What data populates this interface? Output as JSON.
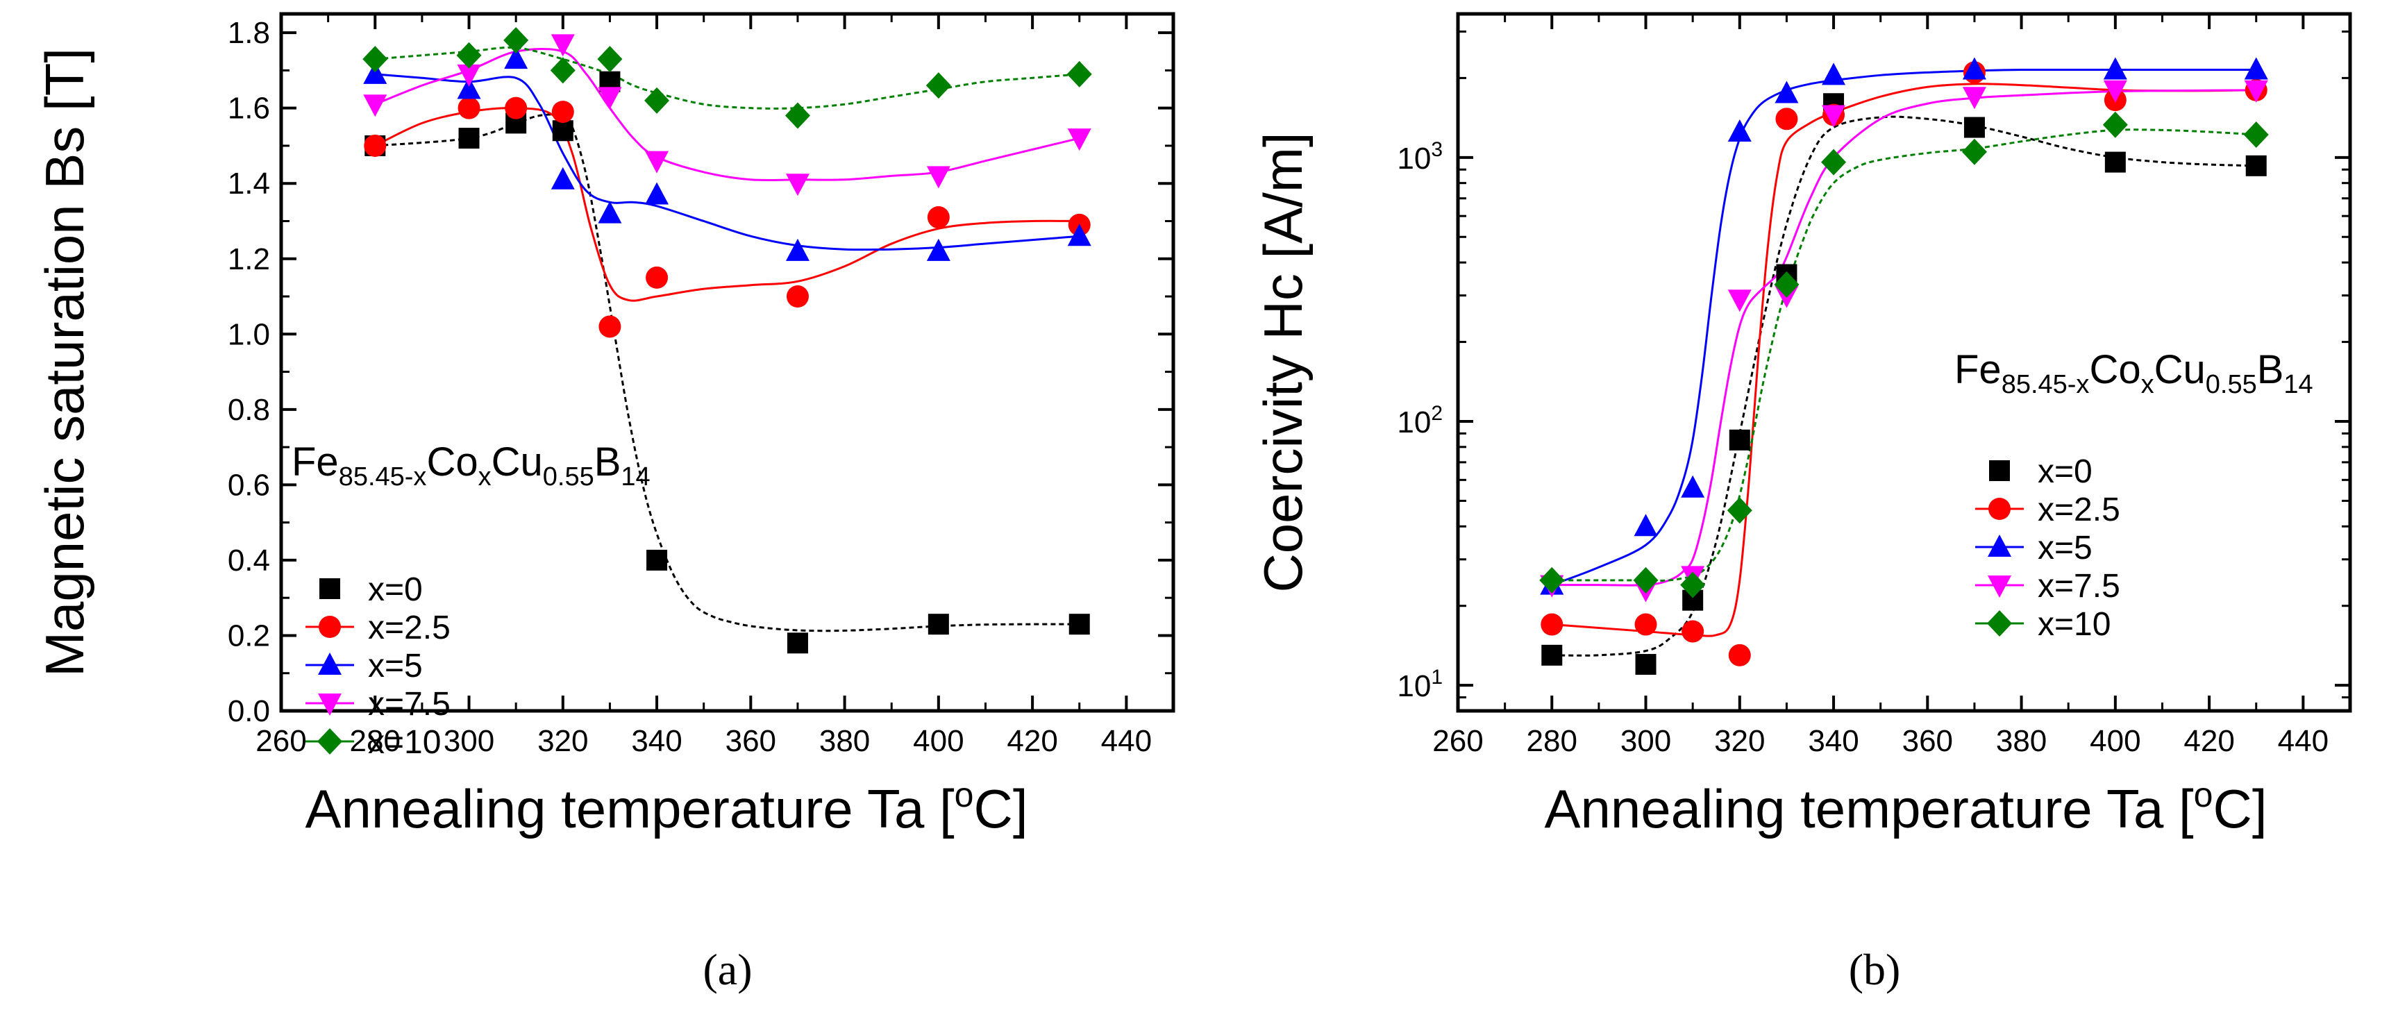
{
  "chart_data": [
    {
      "type": "scatter",
      "panel_label": "(a)",
      "title": "",
      "xlabel": "Annealing temperature Ta [",
      "xlabel_sup": "o",
      "xlabel_end": "C]",
      "ylabel": "Magnetic saturation Bs [T]",
      "xlim": [
        260,
        450
      ],
      "ylim": [
        0.0,
        1.85
      ],
      "yscale": "linear",
      "grid": false,
      "legend_position": "left",
      "xticks": [
        "260",
        "280",
        "300",
        "320",
        "340",
        "360",
        "380",
        "400",
        "420",
        "440"
      ],
      "yticks": [
        "0.0",
        "0.2",
        "0.4",
        "0.6",
        "0.8",
        "1.0",
        "1.2",
        "1.4",
        "1.6",
        "1.8"
      ],
      "annotation": {
        "base": "Fe",
        "sub1": "85.45-x",
        "mid1": "Co",
        "sub2": "x",
        "mid2": "Cu",
        "sub3": "0.55",
        "mid3": "B",
        "sub4": "14"
      },
      "series": [
        {
          "name": "x=0",
          "color": "#000000",
          "marker": "square",
          "x": [
            280,
            300,
            310,
            320,
            330,
            340,
            370,
            400,
            430
          ],
          "y": [
            1.5,
            1.52,
            1.56,
            1.54,
            1.67,
            0.4,
            0.18,
            0.23,
            0.23
          ],
          "fit_x": [
            280,
            300,
            310,
            315,
            320,
            322,
            325,
            328,
            331,
            334,
            337,
            340,
            344,
            348,
            352,
            356,
            360,
            366,
            372,
            380,
            390,
            400,
            410,
            420,
            430
          ],
          "fit_y": [
            1.5,
            1.52,
            1.56,
            1.58,
            1.58,
            1.55,
            1.42,
            1.22,
            1.0,
            0.78,
            0.6,
            0.47,
            0.35,
            0.28,
            0.25,
            0.235,
            0.225,
            0.217,
            0.213,
            0.213,
            0.218,
            0.225,
            0.229,
            0.23,
            0.23
          ]
        },
        {
          "name": "x=2.5",
          "color": "#ff0000",
          "marker": "circle",
          "x": [
            280,
            300,
            310,
            320,
            330,
            340,
            370,
            400,
            430
          ],
          "y": [
            1.5,
            1.6,
            1.6,
            1.59,
            1.02,
            1.15,
            1.1,
            1.31,
            1.29
          ],
          "fit_x": [
            280,
            290,
            300,
            310,
            318,
            322,
            326,
            330,
            334,
            340,
            350,
            360,
            370,
            380,
            390,
            400,
            410,
            420,
            430
          ],
          "fit_y": [
            1.5,
            1.56,
            1.59,
            1.6,
            1.58,
            1.48,
            1.28,
            1.13,
            1.09,
            1.1,
            1.12,
            1.13,
            1.14,
            1.18,
            1.24,
            1.28,
            1.295,
            1.3,
            1.3
          ]
        },
        {
          "name": "x=5",
          "color": "#0000ff",
          "marker": "triangle-up",
          "x": [
            280,
            300,
            310,
            320,
            330,
            340,
            370,
            400,
            430
          ],
          "y": [
            1.69,
            1.65,
            1.73,
            1.41,
            1.32,
            1.37,
            1.22,
            1.22,
            1.26
          ],
          "fit_x": [
            280,
            290,
            300,
            310,
            315,
            320,
            325,
            330,
            335,
            340,
            350,
            360,
            370,
            380,
            390,
            400,
            410,
            420,
            430
          ],
          "fit_y": [
            1.69,
            1.68,
            1.67,
            1.68,
            1.61,
            1.48,
            1.38,
            1.35,
            1.35,
            1.34,
            1.3,
            1.26,
            1.235,
            1.225,
            1.225,
            1.23,
            1.24,
            1.25,
            1.26
          ]
        },
        {
          "name": "x=7.5",
          "color": "#ff00ff",
          "marker": "triangle-down",
          "x": [
            280,
            300,
            320,
            330,
            340,
            370,
            400,
            430
          ],
          "y": [
            1.61,
            1.69,
            1.77,
            1.63,
            1.46,
            1.4,
            1.42,
            1.52
          ],
          "fit_x": [
            280,
            290,
            300,
            310,
            320,
            325,
            330,
            335,
            340,
            350,
            360,
            370,
            380,
            390,
            400,
            410,
            420,
            430
          ],
          "fit_y": [
            1.61,
            1.66,
            1.7,
            1.75,
            1.75,
            1.69,
            1.6,
            1.52,
            1.47,
            1.43,
            1.41,
            1.41,
            1.41,
            1.42,
            1.43,
            1.46,
            1.49,
            1.52
          ]
        },
        {
          "name": "x=10",
          "color": "#008000",
          "marker": "diamond",
          "x": [
            280,
            300,
            310,
            320,
            330,
            340,
            370,
            400,
            430
          ],
          "y": [
            1.73,
            1.74,
            1.78,
            1.7,
            1.73,
            1.62,
            1.58,
            1.66,
            1.69
          ],
          "fit_x": [
            280,
            290,
            300,
            310,
            320,
            330,
            335,
            340,
            350,
            360,
            370,
            380,
            390,
            400,
            410,
            420,
            430
          ],
          "fit_y": [
            1.73,
            1.74,
            1.75,
            1.76,
            1.73,
            1.69,
            1.66,
            1.64,
            1.61,
            1.6,
            1.6,
            1.61,
            1.63,
            1.65,
            1.67,
            1.68,
            1.69
          ]
        }
      ]
    },
    {
      "type": "scatter",
      "panel_label": "(b)",
      "title": "",
      "xlabel": "Annealing temperature Ta [",
      "xlabel_sup": "o",
      "xlabel_end": "C]",
      "ylabel": "Coercivity Hc [A/m]",
      "xlim": [
        260,
        450
      ],
      "ylim": [
        8,
        3500
      ],
      "yscale": "log",
      "grid": false,
      "legend_position": "right",
      "xticks": [
        "260",
        "280",
        "300",
        "320",
        "340",
        "360",
        "380",
        "400",
        "420",
        "440"
      ],
      "yticks": [
        {
          "base": "10",
          "exp": "1",
          "value": 10
        },
        {
          "base": "10",
          "exp": "2",
          "value": 100
        },
        {
          "base": "10",
          "exp": "3",
          "value": 1000
        }
      ],
      "annotation": {
        "base": "Fe",
        "sub1": "85.45-x",
        "mid1": "Co",
        "sub2": "x",
        "mid2": "Cu",
        "sub3": "0.55",
        "mid3": "B",
        "sub4": "14"
      },
      "series": [
        {
          "name": "x=0",
          "color": "#000000",
          "marker": "square",
          "x": [
            280,
            300,
            310,
            320,
            330,
            340,
            370,
            400,
            430
          ],
          "y": [
            13,
            12,
            21,
            85,
            360,
            1600,
            1300,
            960,
            930
          ],
          "fit_x": [
            280,
            290,
            300,
            305,
            310,
            315,
            320,
            325,
            330,
            335,
            340,
            350,
            360,
            370,
            380,
            390,
            400,
            410,
            420,
            430
          ],
          "fit_y": [
            13,
            13,
            13.5,
            15,
            19,
            35,
            90,
            240,
            560,
            1000,
            1300,
            1420,
            1400,
            1320,
            1200,
            1080,
            1000,
            960,
            940,
            930
          ]
        },
        {
          "name": "x=2.5",
          "color": "#ff0000",
          "marker": "circle",
          "x": [
            280,
            300,
            310,
            320,
            330,
            340,
            370,
            400,
            430
          ],
          "y": [
            17,
            17,
            16,
            13,
            1400,
            1450,
            2100,
            1650,
            1800
          ],
          "fit_x": [
            280,
            290,
            300,
            310,
            315,
            318,
            320,
            322,
            324,
            326,
            328,
            330,
            335,
            340,
            350,
            360,
            370,
            380,
            390,
            400,
            410,
            420,
            430
          ],
          "fit_y": [
            17,
            16.5,
            16,
            15.5,
            15.5,
            17,
            25,
            60,
            180,
            460,
            860,
            1150,
            1350,
            1480,
            1700,
            1850,
            1900,
            1880,
            1840,
            1800,
            1790,
            1790,
            1800
          ]
        },
        {
          "name": "x=5",
          "color": "#0000ff",
          "marker": "triangle-up",
          "x": [
            280,
            300,
            310,
            320,
            330,
            340,
            370,
            400,
            430
          ],
          "y": [
            24,
            40,
            56,
            1250,
            1750,
            2050,
            2150,
            2150,
            2150
          ],
          "fit_x": [
            280,
            290,
            300,
            305,
            308,
            310,
            312,
            314,
            316,
            318,
            320,
            322,
            325,
            330,
            335,
            340,
            350,
            360,
            370,
            380,
            400,
            430
          ],
          "fit_y": [
            24,
            28,
            34,
            44,
            60,
            85,
            150,
            300,
            560,
            880,
            1180,
            1400,
            1620,
            1800,
            1900,
            1960,
            2050,
            2100,
            2130,
            2150,
            2150,
            2150
          ]
        },
        {
          "name": "x=7.5",
          "color": "#ff00ff",
          "marker": "triangle-down",
          "x": [
            280,
            300,
            310,
            320,
            330,
            340,
            370,
            400,
            430
          ],
          "y": [
            24,
            23,
            26,
            290,
            300,
            1450,
            1700,
            1800,
            1800
          ],
          "fit_x": [
            280,
            290,
            300,
            305,
            308,
            310,
            312,
            314,
            316,
            318,
            320,
            322,
            325,
            328,
            330,
            335,
            340,
            350,
            360,
            370,
            380,
            400,
            430
          ],
          "fit_y": [
            24,
            24,
            24,
            25,
            27,
            30,
            40,
            60,
            100,
            160,
            230,
            280,
            320,
            360,
            420,
            700,
            1000,
            1400,
            1600,
            1680,
            1720,
            1780,
            1800
          ]
        },
        {
          "name": "x=10",
          "color": "#008000",
          "marker": "diamond",
          "x": [
            280,
            300,
            310,
            320,
            330,
            340,
            370,
            400,
            430
          ],
          "y": [
            25,
            25,
            24,
            46,
            330,
            960,
            1050,
            1330,
            1220
          ],
          "fit_x": [
            280,
            290,
            300,
            305,
            310,
            313,
            316,
            319,
            322,
            325,
            328,
            330,
            333,
            336,
            340,
            345,
            350,
            360,
            370,
            380,
            390,
            400,
            410,
            420,
            430
          ],
          "fit_y": [
            25,
            25,
            25,
            25,
            26,
            28,
            33,
            45,
            75,
            140,
            240,
            320,
            460,
            620,
            800,
            920,
            980,
            1040,
            1080,
            1150,
            1220,
            1270,
            1270,
            1250,
            1220
          ]
        }
      ]
    }
  ]
}
